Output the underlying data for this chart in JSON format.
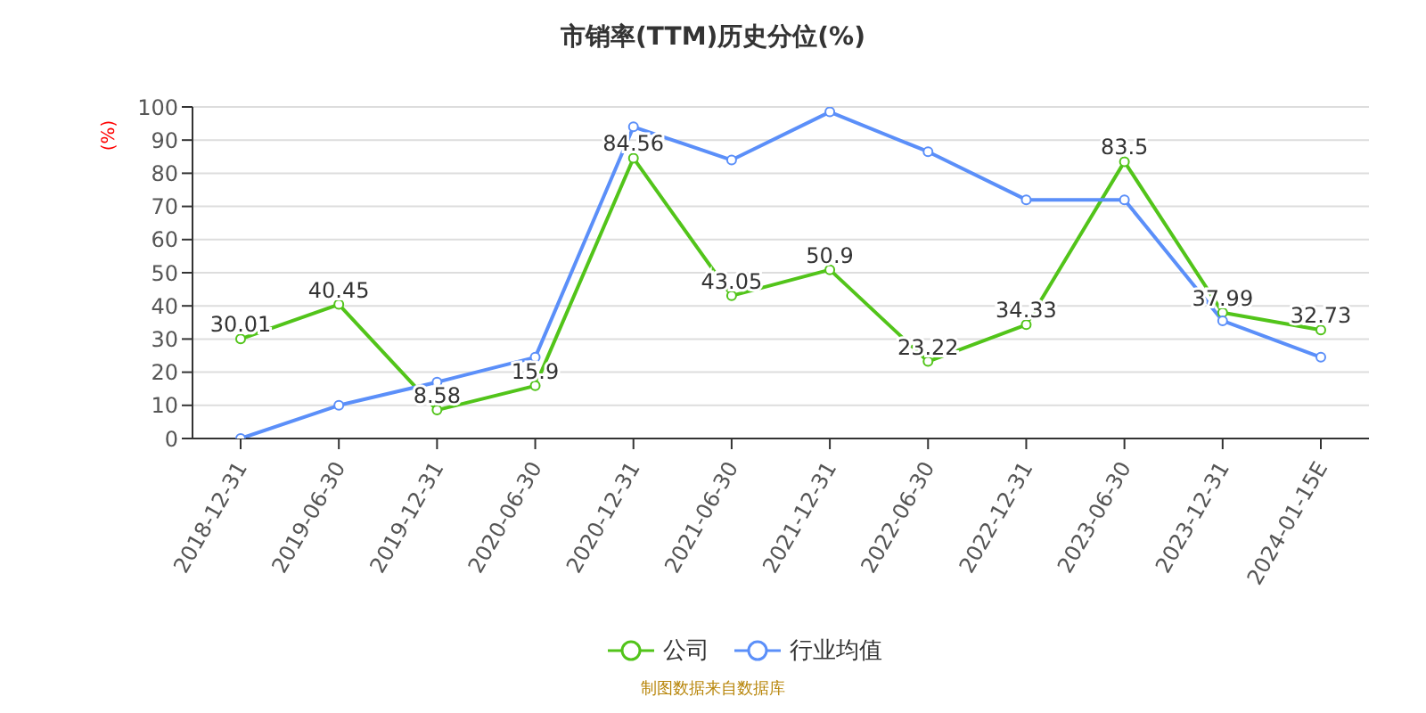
{
  "chart_data": {
    "type": "line",
    "title": "市销率(TTM)历史分位(%)",
    "ylabel": "(%)",
    "categories": [
      "2018-12-31",
      "2019-06-30",
      "2019-12-31",
      "2020-06-30",
      "2020-12-31",
      "2021-06-30",
      "2021-12-31",
      "2022-06-30",
      "2022-12-31",
      "2023-06-30",
      "2023-12-31",
      "2024-01-15E"
    ],
    "series": [
      {
        "name": "公司",
        "color": "#52c41a",
        "values": [
          30.01,
          40.45,
          8.58,
          15.9,
          84.56,
          43.05,
          50.9,
          23.22,
          34.33,
          83.5,
          37.99,
          32.73
        ],
        "value_labels": [
          "30.01",
          "40.45",
          "8.58",
          "15.9",
          "84.56",
          "43.05",
          "50.9",
          "23.22",
          "34.33",
          "83.5",
          "37.99",
          "32.73"
        ]
      },
      {
        "name": "行业均值",
        "color": "#5b8ff9",
        "values": [
          0,
          10,
          17,
          24.5,
          94,
          84,
          98.5,
          86.5,
          72,
          72,
          35.5,
          24.5
        ]
      }
    ],
    "ylim": [
      0,
      100
    ],
    "yticks": [
      0,
      10,
      20,
      30,
      40,
      50,
      60,
      70,
      80,
      90,
      100
    ],
    "grid": "y",
    "legend": "bottom",
    "marker": "circle",
    "line_style": "solid",
    "annotations": [
      "制图数据来自数据库"
    ]
  }
}
